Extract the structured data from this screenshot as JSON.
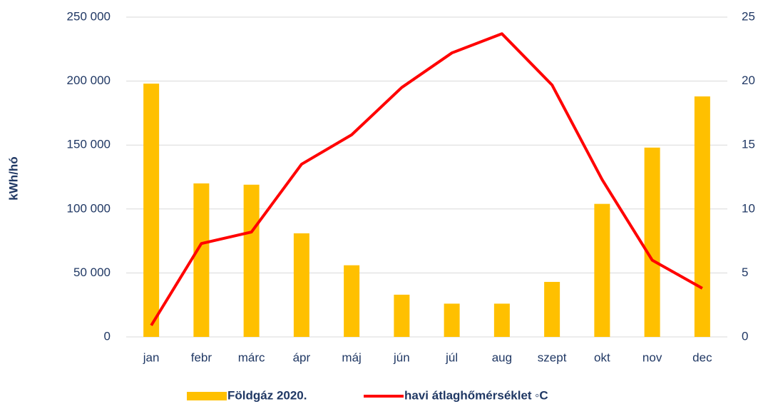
{
  "chart_data": {
    "type": "bar_line",
    "ylabel": "kWh/hó",
    "categories": [
      "jan",
      "febr",
      "márc",
      "ápr",
      "máj",
      "jún",
      "júl",
      "aug",
      "szept",
      "okt",
      "nov",
      "dec"
    ],
    "series": [
      {
        "name": "Földgáz 2020.",
        "type": "bar",
        "color": "#FFC000",
        "values": [
          198000,
          120000,
          119000,
          81000,
          56000,
          33000,
          26000,
          26000,
          43000,
          104000,
          148000,
          188000
        ]
      },
      {
        "name": "havi átlaghőmérséklet ◦C",
        "type": "line",
        "axis": "y2",
        "color": "#FF0000",
        "values": [
          0.9,
          7.3,
          8.2,
          13.5,
          15.8,
          19.5,
          22.2,
          23.7,
          19.7,
          12.3,
          6.0,
          3.8
        ]
      }
    ],
    "ylim": [
      0,
      250000
    ],
    "yticks": [
      0,
      {
        "value": 50000,
        "label": "50 000"
      },
      {
        "value": 100000,
        "label": "100 000"
      },
      {
        "value": 150000,
        "label": "150 000"
      },
      {
        "value": 200000,
        "label": "200 000"
      },
      {
        "value": 250000,
        "label": "250 000"
      }
    ],
    "y2lim": [
      0,
      25
    ],
    "y2ticks": [
      0,
      5,
      10,
      15,
      20,
      25
    ],
    "grid": true,
    "legend": "bottom"
  }
}
